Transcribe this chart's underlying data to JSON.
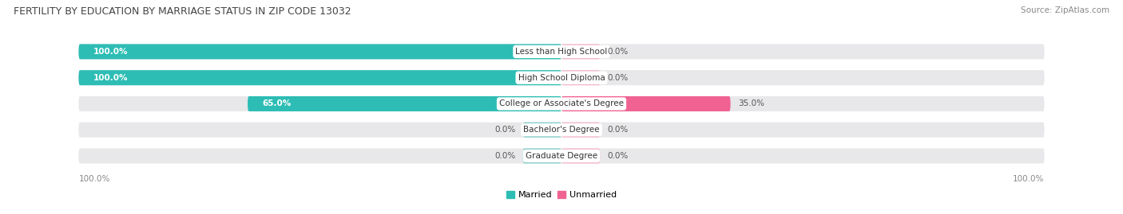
{
  "title": "FERTILITY BY EDUCATION BY MARRIAGE STATUS IN ZIP CODE 13032",
  "source": "Source: ZipAtlas.com",
  "categories": [
    "Less than High School",
    "High School Diploma",
    "College or Associate's Degree",
    "Bachelor's Degree",
    "Graduate Degree"
  ],
  "married": [
    100.0,
    100.0,
    65.0,
    0.0,
    0.0
  ],
  "unmarried": [
    0.0,
    0.0,
    35.0,
    0.0,
    0.0
  ],
  "married_color": "#2DBDB4",
  "married_color_light": "#85CEC9",
  "unmarried_color": "#F06292",
  "unmarried_color_light": "#F4B8CB",
  "bg_bar": "#E8E8EA",
  "bg_figure": "#FFFFFF",
  "stub_size": 8.0,
  "bar_height": 0.58,
  "title_fontsize": 9,
  "source_fontsize": 7.5,
  "label_fontsize": 7.5,
  "value_fontsize": 7.5,
  "axis_label_fontsize": 7.5,
  "legend_fontsize": 8
}
